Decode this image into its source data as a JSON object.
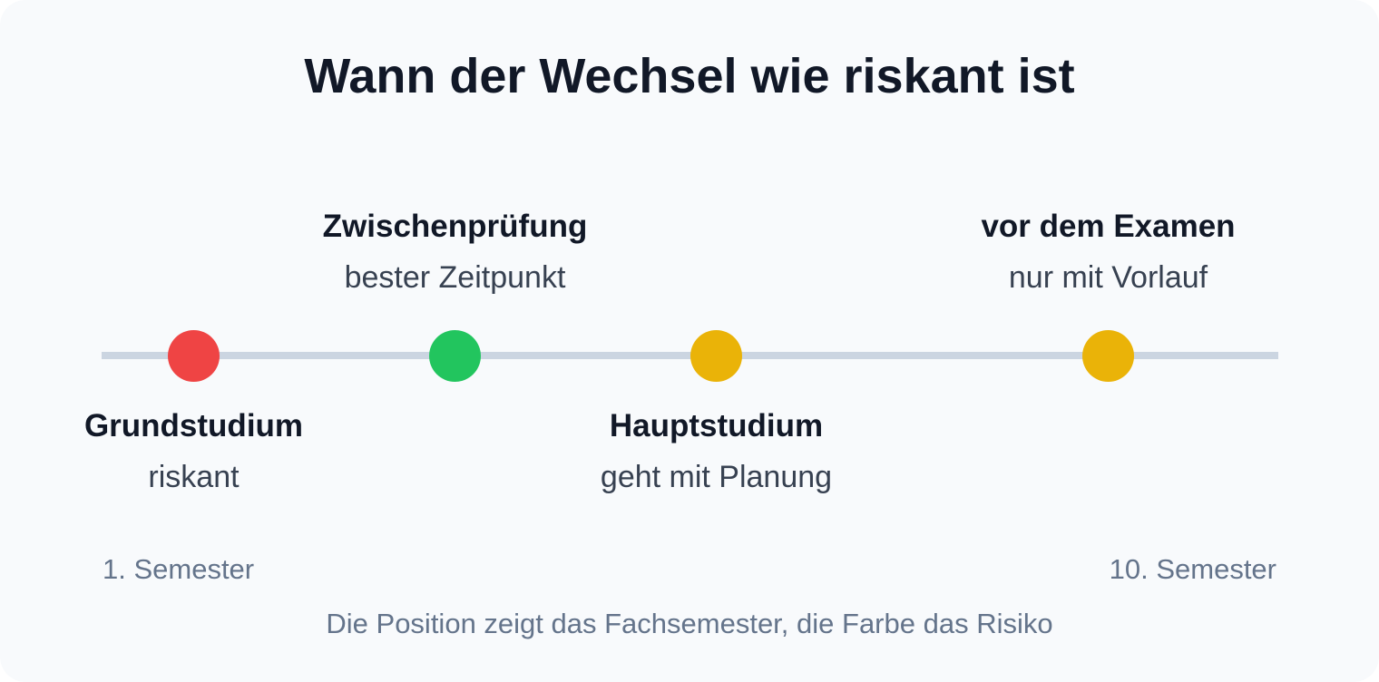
{
  "title": "Wann der Wechsel wie riskant ist",
  "phases": [
    {
      "name": "Grundstudium",
      "note": "riskant",
      "semester": 2,
      "risk_color": "#ef4444",
      "label_side": "below"
    },
    {
      "name": "Zwischenprüfung",
      "note": "bester Zeitpunkt",
      "semester": 4,
      "risk_color": "#22c55e",
      "label_side": "above"
    },
    {
      "name": "Hauptstudium",
      "note": "geht mit Planung",
      "semester": 6,
      "risk_color": "#eab308",
      "label_side": "below"
    },
    {
      "name": "vor dem Examen",
      "note": "nur mit Vorlauf",
      "semester": 9,
      "risk_color": "#eab308",
      "label_side": "above"
    }
  ],
  "axis": {
    "start_label": "1. Semester",
    "end_label": "10. Semester",
    "min": 1,
    "max": 10
  },
  "footer": "Die Position zeigt das Fachsemester, die Farbe das Risiko"
}
